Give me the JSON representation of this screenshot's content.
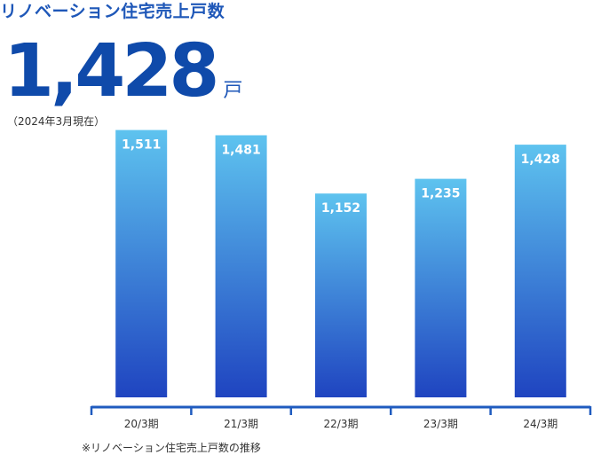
{
  "header": {
    "title": "リノベーション住宅売上戸数",
    "big_value": "1,428",
    "big_unit": "戸",
    "as_of": "（2024年3月現在）"
  },
  "footnote": "※リノベーション住宅売上戸数の推移",
  "colors": {
    "title": "#1e57b8",
    "bar_top": "#5ec3ef",
    "bar_bottom": "#1f44c0",
    "axis": "#1f5bbf",
    "bar_label": "#ffffff"
  },
  "chart_data": {
    "type": "bar",
    "categories": [
      "20/3期",
      "21/3期",
      "22/3期",
      "23/3期",
      "24/3期"
    ],
    "values": [
      1511,
      1481,
      1152,
      1235,
      1428
    ],
    "value_labels": [
      "1,511",
      "1,481",
      "1,152",
      "1,235",
      "1,428"
    ],
    "title": "リノベーション住宅売上戸数",
    "xlabel": "",
    "ylabel": "",
    "grid": false,
    "legend": "none"
  }
}
